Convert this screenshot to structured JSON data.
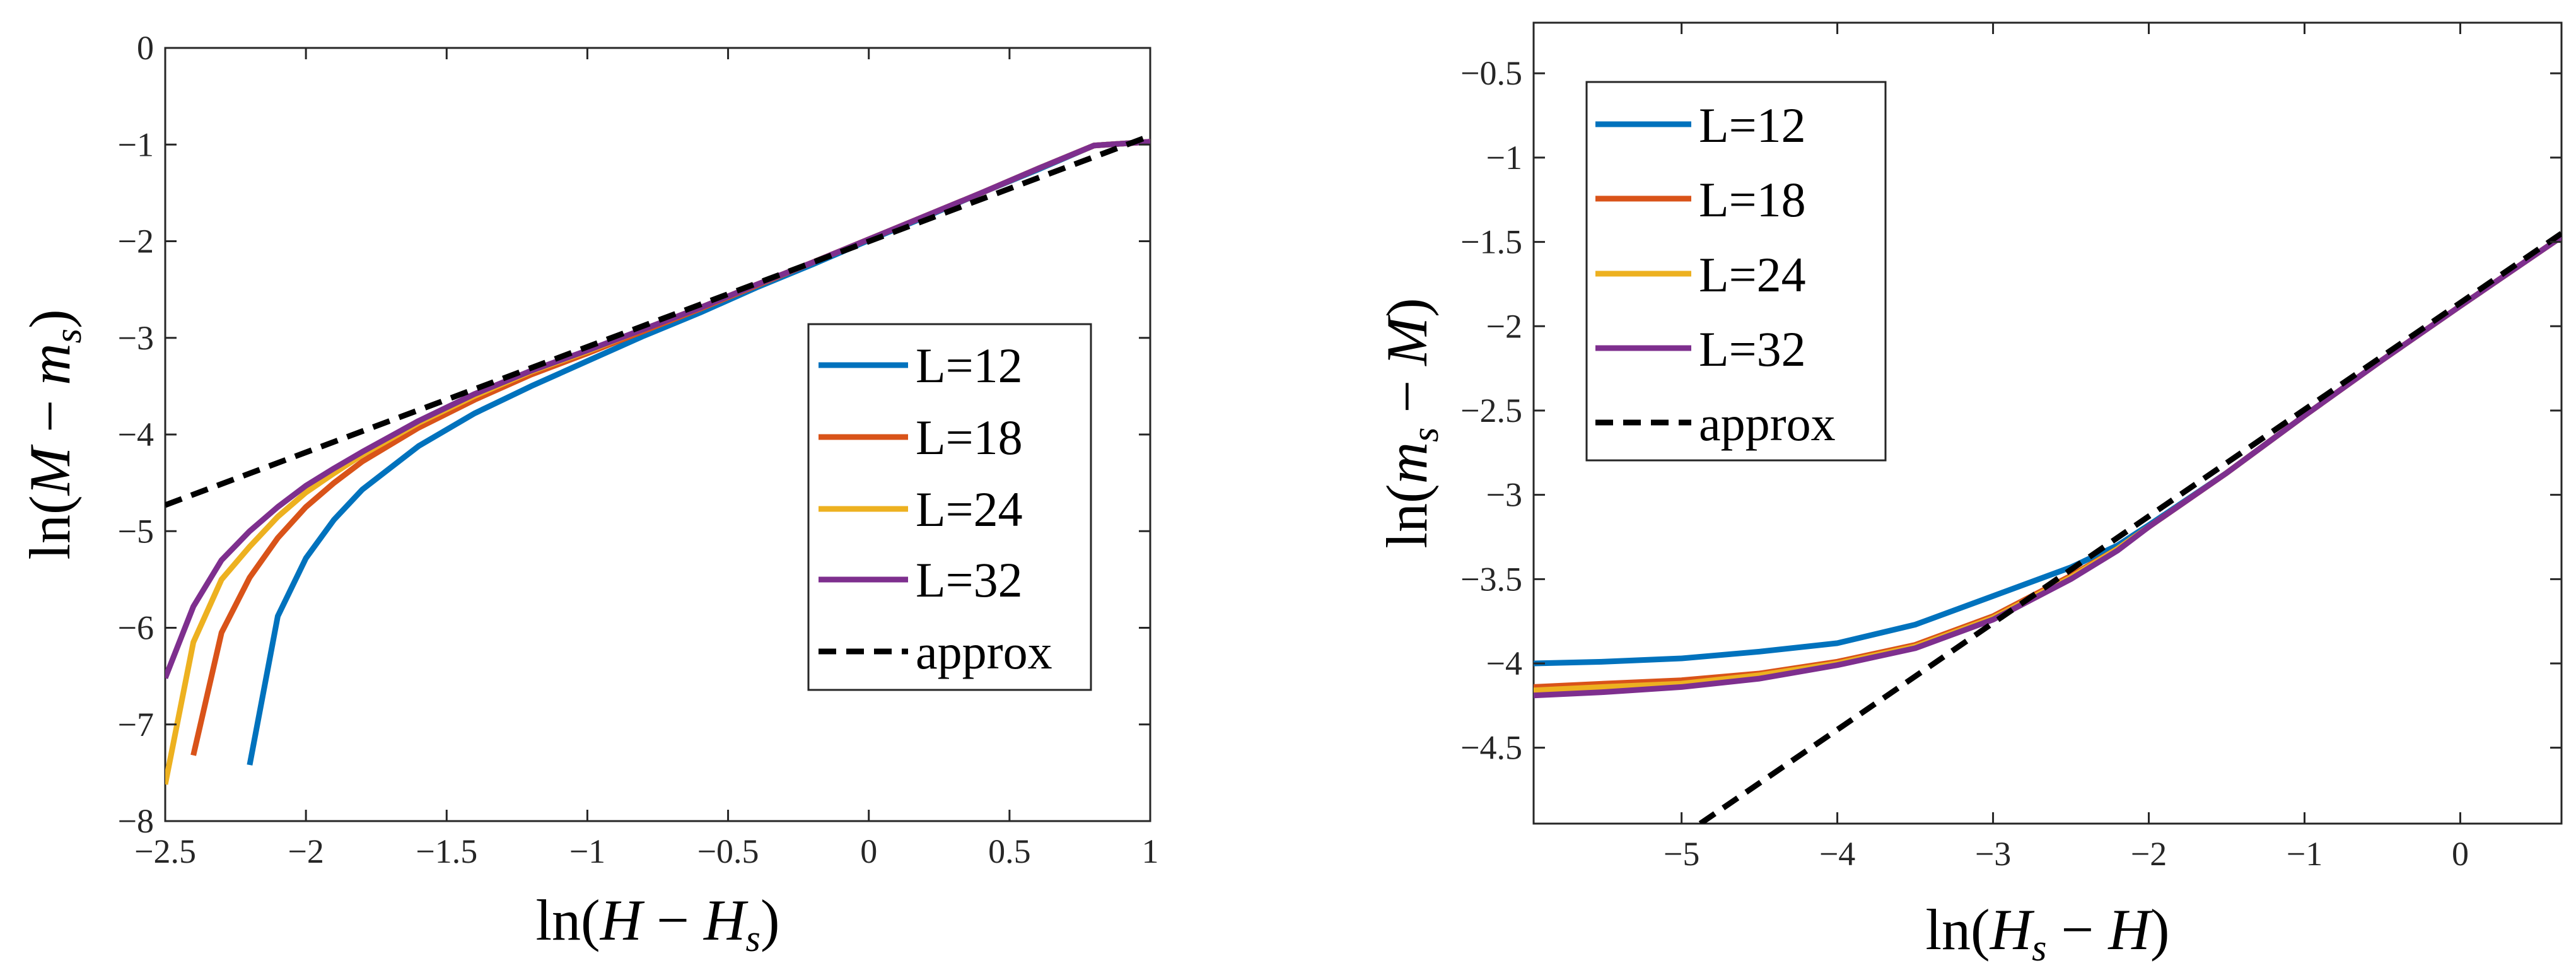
{
  "chart_data": [
    {
      "type": "line",
      "xlabel": "ln(H − H_s)",
      "ylabel": "ln(M − m_s)",
      "xlim": [
        -2.5,
        1
      ],
      "ylim": [
        -8,
        0
      ],
      "xticks": [
        -2.5,
        -2,
        -1.5,
        -1,
        -0.5,
        0,
        0.5,
        1
      ],
      "yticks": [
        -8,
        -7,
        -6,
        -5,
        -4,
        -3,
        -2,
        -1,
        0
      ],
      "xtick_labels": [
        "−2.5",
        "−2",
        "−1.5",
        "−1",
        "−0.5",
        "0",
        "0.5",
        "1"
      ],
      "ytick_labels": [
        "−8",
        "−7",
        "−6",
        "−5",
        "−4",
        "−3",
        "−2",
        "−1",
        "0"
      ],
      "grid": false,
      "legend_position": "center-right",
      "series": [
        {
          "name": "L=12",
          "color": "#0072BD",
          "style": "solid",
          "x": [
            -2.2,
            -2.1,
            -2.0,
            -1.9,
            -1.8,
            -1.6,
            -1.4,
            -1.2,
            -1.0,
            -0.8,
            -0.6,
            -0.4,
            -0.2,
            0.0,
            0.2,
            0.4,
            0.6,
            0.8,
            1.0
          ],
          "y": [
            -7.42,
            -5.88,
            -5.28,
            -4.88,
            -4.57,
            -4.12,
            -3.78,
            -3.5,
            -3.24,
            -2.98,
            -2.74,
            -2.48,
            -2.24,
            -1.99,
            -1.75,
            -1.5,
            -1.26,
            -1.01,
            -0.97
          ]
        },
        {
          "name": "L=18",
          "color": "#D95319",
          "style": "solid",
          "x": [
            -2.4,
            -2.3,
            -2.2,
            -2.1,
            -2.0,
            -1.9,
            -1.8,
            -1.6,
            -1.4,
            -1.2,
            -1.0,
            -0.8,
            -0.6,
            -0.4,
            -0.2,
            0.0,
            0.2,
            0.4,
            0.6,
            0.8,
            1.0
          ],
          "y": [
            -7.32,
            -6.05,
            -5.48,
            -5.07,
            -4.75,
            -4.5,
            -4.28,
            -3.93,
            -3.64,
            -3.38,
            -3.16,
            -2.93,
            -2.7,
            -2.46,
            -2.22,
            -1.98,
            -1.74,
            -1.5,
            -1.25,
            -1.01,
            -0.97
          ]
        },
        {
          "name": "L=24",
          "color": "#EDB120",
          "style": "solid",
          "x": [
            -2.5,
            -2.4,
            -2.3,
            -2.2,
            -2.1,
            -2.0,
            -1.9,
            -1.8,
            -1.6,
            -1.4,
            -1.2,
            -1.0,
            -0.8,
            -0.6,
            -0.4,
            -0.2,
            0.0,
            0.2,
            0.4,
            0.6,
            0.8,
            1.0
          ],
          "y": [
            -7.62,
            -6.15,
            -5.5,
            -5.16,
            -4.85,
            -4.6,
            -4.4,
            -4.21,
            -3.88,
            -3.6,
            -3.35,
            -3.14,
            -2.91,
            -2.69,
            -2.45,
            -2.22,
            -1.98,
            -1.74,
            -1.5,
            -1.25,
            -1.01,
            -0.97
          ]
        },
        {
          "name": "L=32",
          "color": "#7E2F8E",
          "style": "solid",
          "x": [
            -2.5,
            -2.4,
            -2.3,
            -2.2,
            -2.1,
            -2.0,
            -1.9,
            -1.8,
            -1.6,
            -1.4,
            -1.2,
            -1.0,
            -0.8,
            -0.6,
            -0.4,
            -0.2,
            0.0,
            0.2,
            0.4,
            0.6,
            0.8,
            1.0
          ],
          "y": [
            -6.52,
            -5.78,
            -5.3,
            -5.0,
            -4.75,
            -4.53,
            -4.35,
            -4.18,
            -3.86,
            -3.58,
            -3.34,
            -3.13,
            -2.91,
            -2.69,
            -2.45,
            -2.22,
            -1.98,
            -1.74,
            -1.5,
            -1.25,
            -1.01,
            -0.97
          ]
        },
        {
          "name": "approx",
          "color": "#000000",
          "style": "dashed",
          "x": [
            -2.5,
            1.0
          ],
          "y": [
            -4.73,
            -0.91
          ]
        }
      ]
    },
    {
      "type": "line",
      "xlabel": "ln(H_s − H)",
      "ylabel": "ln(m_s − M)",
      "xlim": [
        -5.95,
        0.65
      ],
      "ylim": [
        -4.95,
        -0.2
      ],
      "xticks": [
        -5,
        -4,
        -3,
        -2,
        -1,
        0
      ],
      "yticks": [
        -4.5,
        -4,
        -3.5,
        -3,
        -2.5,
        -2,
        -1.5,
        -1,
        -0.5
      ],
      "xtick_labels": [
        "−5",
        "−4",
        "−3",
        "−2",
        "−1",
        "0"
      ],
      "ytick_labels": [
        "−4.5",
        "−4",
        "−3.5",
        "−3",
        "−2.5",
        "−2",
        "−1.5",
        "−1",
        "−0.5"
      ],
      "grid": false,
      "legend_position": "top-left",
      "series": [
        {
          "name": "L=12",
          "color": "#0072BD",
          "style": "solid",
          "x": [
            -5.95,
            -5.5,
            -5.0,
            -4.5,
            -4.0,
            -3.5,
            -3.0,
            -2.5,
            -2.2,
            -2.0,
            -1.5,
            -1.0,
            -0.5,
            0.0,
            0.65
          ],
          "y": [
            -4.0,
            -3.99,
            -3.97,
            -3.93,
            -3.88,
            -3.77,
            -3.6,
            -3.43,
            -3.3,
            -3.18,
            -2.87,
            -2.53,
            -2.2,
            -1.88,
            -1.47
          ]
        },
        {
          "name": "L=18",
          "color": "#D95319",
          "style": "solid",
          "x": [
            -5.95,
            -5.5,
            -5.0,
            -4.5,
            -4.0,
            -3.5,
            -3.0,
            -2.5,
            -2.2,
            -2.0,
            -1.5,
            -1.0,
            -0.5,
            0.0,
            0.65
          ],
          "y": [
            -4.14,
            -4.12,
            -4.1,
            -4.06,
            -3.99,
            -3.89,
            -3.72,
            -3.48,
            -3.32,
            -3.19,
            -2.87,
            -2.53,
            -2.2,
            -1.88,
            -1.47
          ]
        },
        {
          "name": "L=24",
          "color": "#EDB120",
          "style": "solid",
          "x": [
            -5.95,
            -5.5,
            -5.0,
            -4.5,
            -4.0,
            -3.5,
            -3.0,
            -2.5,
            -2.2,
            -2.0,
            -1.5,
            -1.0,
            -0.5,
            0.0,
            0.65
          ],
          "y": [
            -4.16,
            -4.14,
            -4.12,
            -4.07,
            -4.0,
            -3.9,
            -3.73,
            -3.49,
            -3.32,
            -3.19,
            -2.87,
            -2.53,
            -2.2,
            -1.88,
            -1.47
          ]
        },
        {
          "name": "L=32",
          "color": "#7E2F8E",
          "style": "solid",
          "x": [
            -5.95,
            -5.5,
            -5.0,
            -4.5,
            -4.0,
            -3.5,
            -3.0,
            -2.5,
            -2.2,
            -2.0,
            -1.5,
            -1.0,
            -0.5,
            0.0,
            0.65
          ],
          "y": [
            -4.19,
            -4.17,
            -4.14,
            -4.09,
            -4.01,
            -3.91,
            -3.74,
            -3.5,
            -3.33,
            -3.19,
            -2.87,
            -2.53,
            -2.2,
            -1.88,
            -1.47
          ]
        },
        {
          "name": "approx",
          "color": "#000000",
          "style": "dashed",
          "x": [
            -4.88,
            0.65
          ],
          "y": [
            -4.95,
            -1.45
          ]
        }
      ]
    }
  ]
}
